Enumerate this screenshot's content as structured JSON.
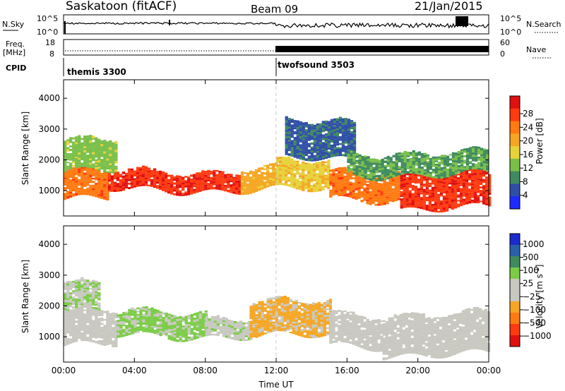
{
  "header": {
    "station": "Saskatoon (fitACF)",
    "beam": "Beam 09",
    "date": "21/Jan/2015"
  },
  "strip_panels": {
    "nsky_label": "N.Sky",
    "nsky_ticks": [
      "10^5",
      "10^0"
    ],
    "nsearch_label": "N.Search",
    "nsearch_ticks": [
      "10^5",
      "10^0"
    ],
    "freq_label": "Freq.",
    "freq_unit": "[MHz]",
    "freq_ticks": [
      "18",
      "8"
    ],
    "nave_label": "Nave",
    "nave_ticks": [
      "60",
      "0"
    ],
    "cpid_label": "CPID",
    "cpid_modes": [
      {
        "name": "themis 3300",
        "start_hour": 0
      },
      {
        "name": "twofsound 3503",
        "start_hour": 12
      }
    ]
  },
  "chart_data": [
    {
      "type": "heatmap",
      "title": "Power",
      "xlabel": "Time UT",
      "ylabel": "Slant Range [km]",
      "x_range_hours": [
        0,
        24
      ],
      "x_ticks": [
        "00:00",
        "04:00",
        "08:00",
        "12:00",
        "16:00",
        "20:00",
        "00:00"
      ],
      "ylim": [
        180,
        4600
      ],
      "y_ticks": [
        "1000",
        "2000",
        "3000",
        "4000"
      ],
      "colorbar_label": "Power [dB]",
      "colorbar_ticks": [
        "4",
        "8",
        "12",
        "16",
        "20",
        "24",
        "28"
      ],
      "colorbar_colors": [
        "#1c2bff",
        "#2f4ea6",
        "#3f8a5e",
        "#79bf49",
        "#e6d23a",
        "#f5a623",
        "#ff7a10",
        "#ff3a10",
        "#e01010"
      ],
      "value_range": [
        0,
        30
      ],
      "bands": [
        {
          "t0": 0.0,
          "t1": 2.5,
          "r0": 700,
          "r1": 1600,
          "value": 22
        },
        {
          "t0": 2.5,
          "t1": 10.0,
          "r0": 1000,
          "r1": 1600,
          "value": 26
        },
        {
          "t0": 10.0,
          "t1": 12.0,
          "r0": 1000,
          "r1": 1700,
          "value": 18
        },
        {
          "t0": 12.0,
          "t1": 15.0,
          "r0": 1000,
          "r1": 1900,
          "value": 16
        },
        {
          "t0": 15.0,
          "t1": 19.0,
          "r0": 700,
          "r1": 1600,
          "value": 22
        },
        {
          "t0": 19.0,
          "t1": 24.0,
          "r0": 400,
          "r1": 1500,
          "value": 26
        },
        {
          "t0": 0.0,
          "t1": 3.0,
          "r0": 1600,
          "r1": 2600,
          "value": 12
        },
        {
          "t0": 12.5,
          "t1": 16.5,
          "r0": 2000,
          "r1": 3200,
          "value": 6
        },
        {
          "t0": 16.0,
          "t1": 24.0,
          "r0": 1500,
          "r1": 2200,
          "value": 10
        }
      ]
    },
    {
      "type": "heatmap",
      "title": "Velocity",
      "xlabel": "Time UT",
      "ylabel": "Slant Range [km]",
      "x_range_hours": [
        0,
        24
      ],
      "x_ticks": [
        "00:00",
        "04:00",
        "08:00",
        "12:00",
        "16:00",
        "20:00",
        "00:00"
      ],
      "ylim": [
        180,
        4600
      ],
      "y_ticks": [
        "1000",
        "2000",
        "3000",
        "4000"
      ],
      "colorbar_label": "Velocity [m s^-1]",
      "colorbar_ticks": [
        "1000",
        "500",
        "100",
        "25",
        "−25",
        "−100",
        "−500",
        "−1000"
      ],
      "colorbar_colors": [
        "#1c2bcc",
        "#2a60a8",
        "#3f8a5e",
        "#7bcc46",
        "#c8c8c0",
        "#c8c8c0",
        "#f5a623",
        "#ff7a10",
        "#ff3a10",
        "#e01010"
      ],
      "value_range": [
        -1200,
        1200
      ],
      "bands": [
        {
          "t0": 0.0,
          "t1": 3.0,
          "r0": 700,
          "r1": 1800,
          "value": 0
        },
        {
          "t0": 3.0,
          "t1": 8.0,
          "r0": 1000,
          "r1": 1800,
          "value": 300
        },
        {
          "t0": 8.0,
          "t1": 10.5,
          "r0": 1000,
          "r1": 1600,
          "value": 150
        },
        {
          "t0": 10.5,
          "t1": 15.0,
          "r0": 1000,
          "r1": 2100,
          "value": -300
        },
        {
          "t0": 15.0,
          "t1": 18.0,
          "r0": 700,
          "r1": 1700,
          "value": 40
        },
        {
          "t0": 18.0,
          "t1": 24.0,
          "r0": 400,
          "r1": 1700,
          "value": 0
        },
        {
          "t0": 0.0,
          "t1": 2.0,
          "r0": 1800,
          "r1": 2700,
          "value": 200
        }
      ]
    }
  ]
}
